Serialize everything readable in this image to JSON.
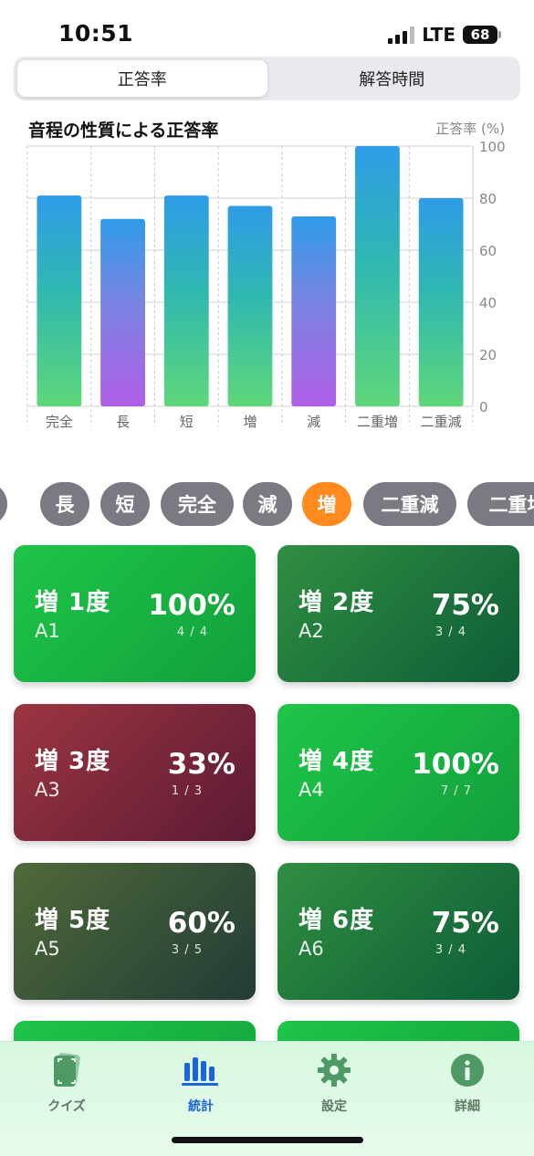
{
  "status": {
    "time": "10:51",
    "network": "LTE",
    "battery": "68"
  },
  "segmented": {
    "tabs": [
      "正答率",
      "解答時間"
    ],
    "active": 0
  },
  "chart_data": {
    "type": "bar",
    "title": "音程の性質による正答率",
    "ylabel": "正答率 (%)",
    "categories": [
      "完全",
      "長",
      "短",
      "増",
      "減",
      "二重増",
      "二重減"
    ],
    "values": [
      81,
      72,
      81,
      77,
      73,
      100,
      80
    ],
    "bar_style": [
      "green-blue",
      "purple-blue",
      "green-blue",
      "green-blue",
      "purple-blue",
      "green-blue",
      "green-blue"
    ],
    "ylim": [
      0,
      100
    ],
    "yticks": [
      0,
      20,
      40,
      60,
      80,
      100
    ],
    "grid": true
  },
  "chips": [
    "減",
    "長",
    "短",
    "完全",
    "減",
    "増",
    "二重減",
    "二重増"
  ],
  "chips_active": 5,
  "cards": [
    {
      "name": "増 1度",
      "code": "A1",
      "pct": "100%",
      "frac": "4 / 4",
      "style": "green"
    },
    {
      "name": "増 2度",
      "code": "A2",
      "pct": "75%",
      "frac": "3 / 4",
      "style": "darkgreen"
    },
    {
      "name": "増 3度",
      "code": "A3",
      "pct": "33%",
      "frac": "1 / 3",
      "style": "maroon"
    },
    {
      "name": "増 4度",
      "code": "A4",
      "pct": "100%",
      "frac": "7 / 7",
      "style": "green"
    },
    {
      "name": "増 5度",
      "code": "A5",
      "pct": "60%",
      "frac": "3 / 5",
      "style": "olive"
    },
    {
      "name": "増 6度",
      "code": "A6",
      "pct": "75%",
      "frac": "3 / 4",
      "style": "darkgreen"
    }
  ],
  "tabbar": {
    "items": [
      {
        "label": "クイズ",
        "icon": "quiz-card-icon"
      },
      {
        "label": "統計",
        "icon": "chart-bars-icon"
      },
      {
        "label": "設定",
        "icon": "gear-icon"
      },
      {
        "label": "詳細",
        "icon": "info-icon"
      }
    ],
    "active": 1
  },
  "colors": {
    "accent": "#1a64e0",
    "chip_active": "#ff8a1e",
    "chip": "#7a7a82"
  }
}
